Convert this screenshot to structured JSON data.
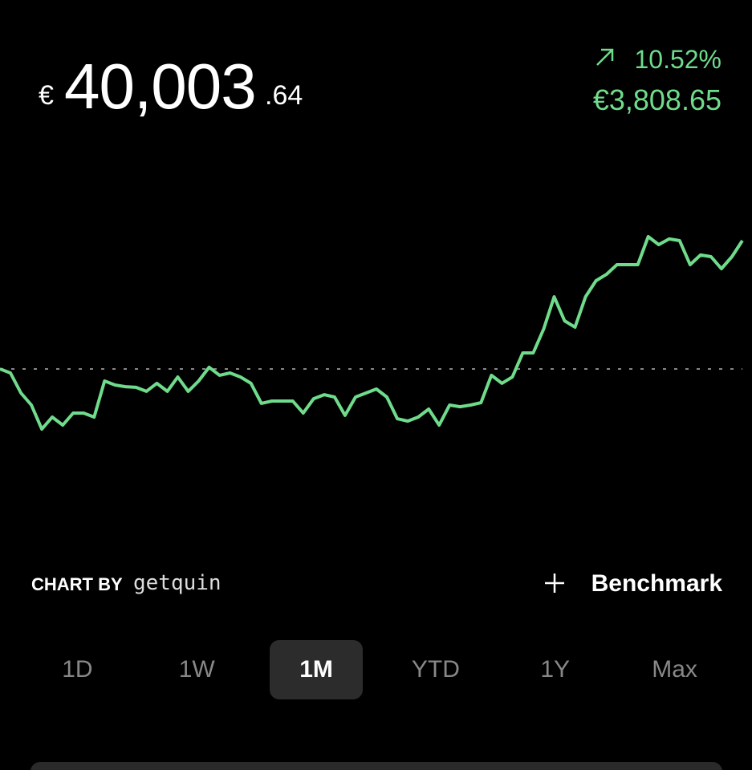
{
  "header": {
    "currency": "€",
    "integer": "40,003",
    "decimals": ".64",
    "change_percent": "10.52%",
    "change_amount": "€3,808.65"
  },
  "chart_data": {
    "type": "line",
    "color": "#6fdc8c",
    "baseline": 36200,
    "ylim": [
      32360,
      41960
    ],
    "values": [
      36200,
      36080,
      35480,
      35120,
      34400,
      34760,
      34520,
      34880,
      34880,
      34760,
      35840,
      35720,
      35670,
      35650,
      35530,
      35770,
      35530,
      35960,
      35530,
      35840,
      36250,
      36010,
      36080,
      35960,
      35770,
      35170,
      35240,
      35240,
      35240,
      34880,
      35310,
      35430,
      35360,
      34810,
      35360,
      35480,
      35600,
      35360,
      34710,
      34640,
      34760,
      35000,
      34520,
      35120,
      35070,
      35120,
      35190,
      36010,
      35770,
      35960,
      36680,
      36680,
      37400,
      38360,
      37640,
      37450,
      38360,
      38840,
      39030,
      39320,
      39320,
      39320,
      40160,
      39920,
      40090,
      40040,
      39320,
      39610,
      39560,
      39200,
      39560,
      40040
    ]
  },
  "chart_by": {
    "label": "CHART BY",
    "brand": "getquin"
  },
  "benchmark": "Benchmark",
  "ranges": [
    "1D",
    "1W",
    "1M",
    "YTD",
    "1Y",
    "Max"
  ],
  "selected_range": "1M"
}
